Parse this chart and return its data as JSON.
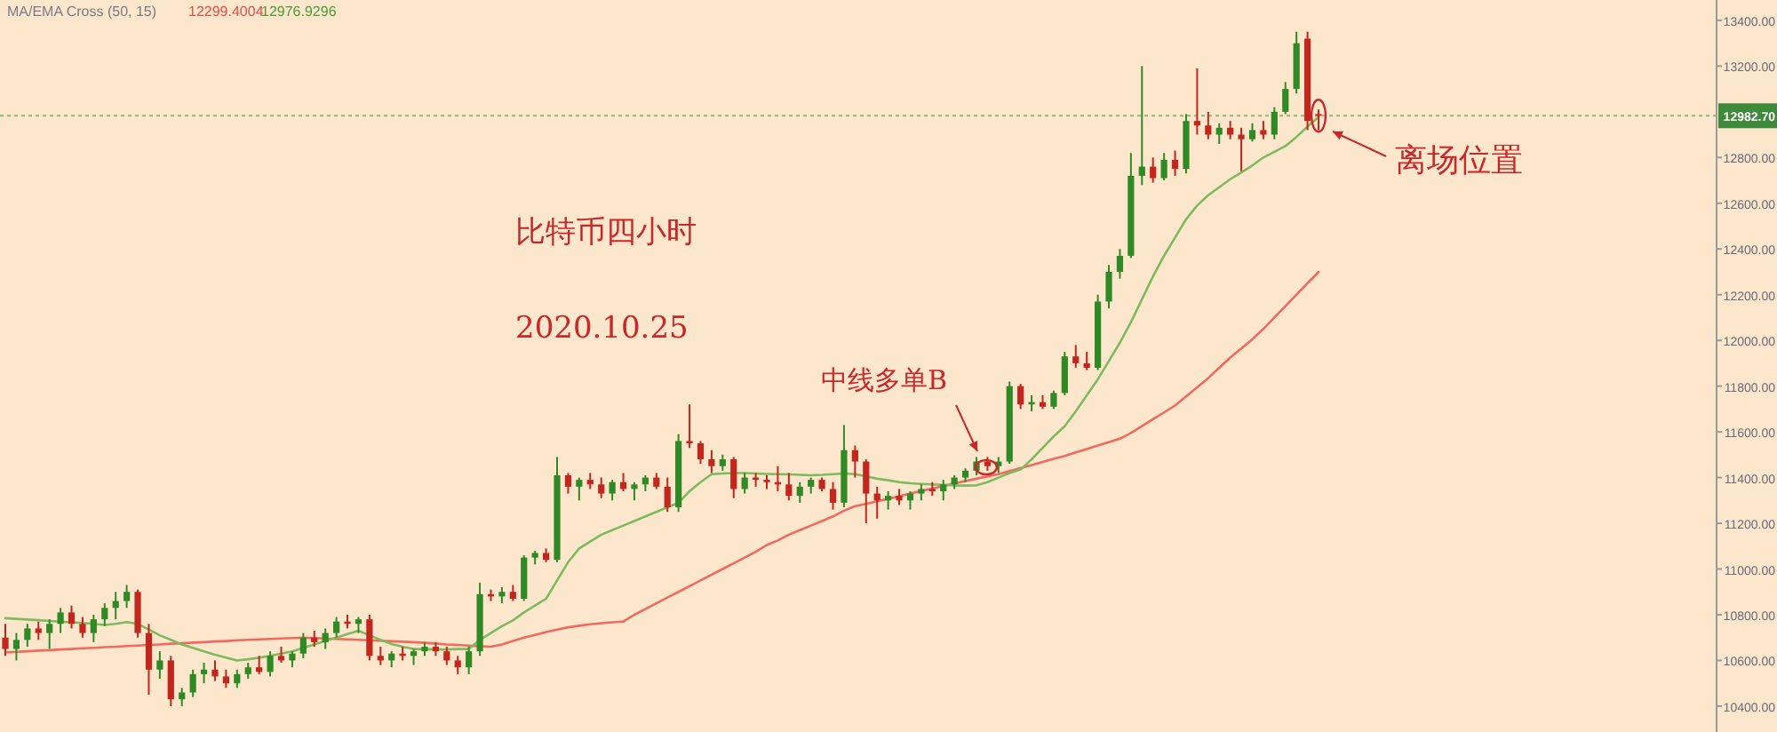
{
  "chart_data": {
    "type": "candlestick",
    "annotations": [
      "MA/EMA Cross (50, 15)",
      "12299.4004",
      "12976.9296",
      "比特币四小时",
      "2020.10.25",
      "中线多单B",
      "离场位置"
    ],
    "categories": [
      null,
      null,
      null,
      null,
      null,
      null,
      null,
      null,
      null,
      null,
      null,
      null,
      null,
      null,
      null,
      null,
      null,
      null,
      null,
      null,
      null,
      null,
      null,
      null,
      null,
      null,
      null,
      null,
      null,
      null,
      null,
      null,
      null,
      null,
      null,
      null,
      null,
      null,
      null,
      null,
      null,
      null,
      null,
      null,
      null,
      null,
      null,
      null,
      null,
      null,
      null,
      null,
      null,
      null,
      null,
      null,
      null,
      null,
      null,
      null,
      null,
      null,
      null,
      null,
      null,
      null,
      null,
      null,
      null,
      null,
      null,
      null,
      null,
      null,
      null,
      null,
      null,
      null,
      null,
      null,
      null,
      null,
      null,
      null,
      null,
      null,
      null,
      null,
      null,
      null,
      null,
      null,
      null,
      null,
      null,
      null,
      null,
      null,
      null,
      null,
      null,
      null,
      null,
      null,
      null,
      null,
      null,
      null,
      null,
      null,
      null,
      null,
      null,
      null,
      null,
      null,
      null,
      null,
      null,
      null
    ],
    "ohlc": [
      [
        10700,
        10760,
        10620,
        10650
      ],
      [
        10650,
        10720,
        10600,
        10690
      ],
      [
        10690,
        10760,
        10660,
        10740
      ],
      [
        10740,
        10770,
        10690,
        10720
      ],
      [
        10720,
        10780,
        10650,
        10760
      ],
      [
        10760,
        10830,
        10720,
        10810
      ],
      [
        10810,
        10840,
        10740,
        10760
      ],
      [
        10760,
        10790,
        10700,
        10720
      ],
      [
        10720,
        10800,
        10680,
        10780
      ],
      [
        10780,
        10850,
        10750,
        10830
      ],
      [
        10830,
        10900,
        10780,
        10860
      ],
      [
        10860,
        10930,
        10830,
        10900
      ],
      [
        10900,
        10910,
        10700,
        10720
      ],
      [
        10720,
        10760,
        10450,
        10560
      ],
      [
        10560,
        10640,
        10520,
        10600
      ],
      [
        10600,
        10620,
        10400,
        10430
      ],
      [
        10430,
        10480,
        10400,
        10460
      ],
      [
        10460,
        10560,
        10440,
        10540
      ],
      [
        10540,
        10590,
        10500,
        10560
      ],
      [
        10560,
        10600,
        10510,
        10530
      ],
      [
        10530,
        10560,
        10480,
        10500
      ],
      [
        10500,
        10560,
        10480,
        10540
      ],
      [
        10540,
        10590,
        10520,
        10570
      ],
      [
        10570,
        10620,
        10540,
        10550
      ],
      [
        10550,
        10640,
        10530,
        10620
      ],
      [
        10620,
        10660,
        10590,
        10600
      ],
      [
        10600,
        10640,
        10570,
        10630
      ],
      [
        10630,
        10720,
        10610,
        10700
      ],
      [
        10700,
        10730,
        10660,
        10680
      ],
      [
        10680,
        10740,
        10650,
        10720
      ],
      [
        10720,
        10790,
        10700,
        10770
      ],
      [
        10770,
        10800,
        10740,
        10760
      ],
      [
        10760,
        10790,
        10720,
        10780
      ],
      [
        10780,
        10800,
        10600,
        10620
      ],
      [
        10620,
        10660,
        10580,
        10600
      ],
      [
        10600,
        10640,
        10570,
        10630
      ],
      [
        10630,
        10660,
        10600,
        10620
      ],
      [
        10620,
        10650,
        10580,
        10640
      ],
      [
        10640,
        10680,
        10620,
        10660
      ],
      [
        10660,
        10680,
        10620,
        10640
      ],
      [
        10640,
        10660,
        10580,
        10600
      ],
      [
        10600,
        10620,
        10540,
        10570
      ],
      [
        10570,
        10660,
        10540,
        10640
      ],
      [
        10640,
        10940,
        10620,
        10890
      ],
      [
        10890,
        10910,
        10860,
        10880
      ],
      [
        10880,
        10920,
        10850,
        10900
      ],
      [
        10900,
        10930,
        10860,
        10870
      ],
      [
        10870,
        11060,
        10860,
        11050
      ],
      [
        11050,
        11080,
        11020,
        11070
      ],
      [
        11070,
        11090,
        11030,
        11040
      ],
      [
        11040,
        11490,
        11030,
        11410
      ],
      [
        11410,
        11420,
        11330,
        11360
      ],
      [
        11360,
        11400,
        11300,
        11390
      ],
      [
        11390,
        11420,
        11350,
        11370
      ],
      [
        11370,
        11400,
        11310,
        11330
      ],
      [
        11330,
        11390,
        11300,
        11380
      ],
      [
        11380,
        11420,
        11340,
        11350
      ],
      [
        11350,
        11380,
        11300,
        11370
      ],
      [
        11370,
        11410,
        11340,
        11400
      ],
      [
        11400,
        11420,
        11350,
        11360
      ],
      [
        11360,
        11400,
        11250,
        11270
      ],
      [
        11270,
        11590,
        11250,
        11560
      ],
      [
        11560,
        11720,
        11530,
        11550
      ],
      [
        11550,
        11560,
        11460,
        11480
      ],
      [
        11480,
        11520,
        11420,
        11450
      ],
      [
        11450,
        11500,
        11430,
        11480
      ],
      [
        11480,
        11490,
        11310,
        11350
      ],
      [
        11350,
        11420,
        11330,
        11400
      ],
      [
        11400,
        11420,
        11360,
        11390
      ],
      [
        11390,
        11410,
        11350,
        11380
      ],
      [
        11380,
        11450,
        11340,
        11370
      ],
      [
        11370,
        11420,
        11300,
        11320
      ],
      [
        11320,
        11380,
        11290,
        11360
      ],
      [
        11360,
        11400,
        11330,
        11390
      ],
      [
        11390,
        11400,
        11340,
        11350
      ],
      [
        11350,
        11380,
        11260,
        11290
      ],
      [
        11290,
        11630,
        11270,
        11520
      ],
      [
        11520,
        11540,
        11400,
        11470
      ],
      [
        11470,
        11480,
        11200,
        11330
      ],
      [
        11330,
        11360,
        11220,
        11300
      ],
      [
        11300,
        11340,
        11260,
        11320
      ],
      [
        11320,
        11350,
        11280,
        11300
      ],
      [
        11300,
        11340,
        11260,
        11330
      ],
      [
        11330,
        11370,
        11300,
        11350
      ],
      [
        11350,
        11380,
        11320,
        11340
      ],
      [
        11340,
        11390,
        11300,
        11370
      ],
      [
        11370,
        11410,
        11350,
        11400
      ],
      [
        11400,
        11440,
        11380,
        11430
      ],
      [
        11430,
        11490,
        11410,
        11470
      ],
      [
        11470,
        11490,
        11430,
        11450
      ],
      [
        11450,
        11490,
        11420,
        11470
      ],
      [
        11470,
        11820,
        11460,
        11800
      ],
      [
        11800,
        11810,
        11700,
        11720
      ],
      [
        11720,
        11760,
        11690,
        11730
      ],
      [
        11730,
        11760,
        11700,
        11710
      ],
      [
        11710,
        11780,
        11700,
        11770
      ],
      [
        11770,
        11950,
        11760,
        11930
      ],
      [
        11930,
        11980,
        11880,
        11900
      ],
      [
        11900,
        11950,
        11870,
        11880
      ],
      [
        11880,
        12200,
        11870,
        12170
      ],
      [
        12170,
        12330,
        12140,
        12300
      ],
      [
        12300,
        12400,
        12270,
        12370
      ],
      [
        12370,
        12820,
        12360,
        12720
      ],
      [
        12720,
        13200,
        12680,
        12760
      ],
      [
        12760,
        12800,
        12690,
        12710
      ],
      [
        12710,
        12820,
        12700,
        12790
      ],
      [
        12790,
        12830,
        12720,
        12750
      ],
      [
        12750,
        12990,
        12730,
        12960
      ],
      [
        12960,
        13190,
        12900,
        12940
      ],
      [
        12940,
        13000,
        12880,
        12900
      ],
      [
        12900,
        12950,
        12860,
        12930
      ],
      [
        12930,
        12960,
        12880,
        12900
      ],
      [
        12900,
        12930,
        12740,
        12880
      ],
      [
        12880,
        12950,
        12870,
        12920
      ],
      [
        12920,
        12960,
        12880,
        12900
      ],
      [
        12900,
        13020,
        12880,
        13000
      ],
      [
        13000,
        13130,
        12990,
        13100
      ],
      [
        13100,
        13350,
        13080,
        13300
      ],
      [
        13320,
        13350,
        12920,
        12960
      ],
      [
        12990,
        13010,
        12920,
        12982.7
      ]
    ],
    "series": [
      {
        "type": "line",
        "color": "#f26a5e",
        "values": [
          10635,
          10638,
          10640,
          10643,
          10645,
          10648,
          10650,
          10653,
          10655,
          10658,
          10660,
          10663,
          10665,
          10668,
          10670,
          10673,
          10675,
          10678,
          10680,
          10683,
          10685,
          10688,
          10690,
          10692,
          10694,
          10696,
          10698,
          10700,
          10698,
          10696,
          10694,
          10692,
          10690,
          10688,
          10686,
          10684,
          10682,
          10680,
          10677,
          10674,
          10670,
          10668,
          10665,
          10662,
          10660,
          10670,
          10685,
          10700,
          10712,
          10724,
          10735,
          10745,
          10752,
          10758,
          10763,
          10767,
          10770,
          10800,
          10825,
          10850,
          10875,
          10900,
          10925,
          10950,
          10975,
          11000,
          11025,
          11050,
          11075,
          11105,
          11125,
          11150,
          11170,
          11190,
          11210,
          11230,
          11255,
          11275,
          11285,
          11296,
          11307,
          11318,
          11330,
          11341,
          11352,
          11363,
          11374,
          11385,
          11395,
          11405,
          11415,
          11428,
          11441,
          11455,
          11468,
          11482,
          11495,
          11510,
          11525,
          11540,
          11555,
          11570,
          11595,
          11625,
          11655,
          11685,
          11715,
          11755,
          11795,
          11835,
          11880,
          11925,
          11965,
          12005,
          12050,
          12100,
          12150,
          12200,
          12250,
          12299
        ]
      },
      {
        "type": "line",
        "color": "#7dbb5e",
        "values": [
          10785,
          10782,
          10779,
          10776,
          10773,
          10770,
          10767,
          10764,
          10760,
          10755,
          10760,
          10768,
          10760,
          10735,
          10710,
          10690,
          10670,
          10655,
          10640,
          10625,
          10612,
          10600,
          10605,
          10612,
          10620,
          10630,
          10640,
          10655,
          10670,
          10685,
          10700,
          10715,
          10730,
          10710,
          10690,
          10672,
          10660,
          10650,
          10650,
          10648,
          10648,
          10650,
          10650,
          10690,
          10720,
          10750,
          10775,
          10810,
          10840,
          10870,
          10950,
          11030,
          11090,
          11120,
          11150,
          11170,
          11190,
          11210,
          11230,
          11250,
          11270,
          11290,
          11340,
          11380,
          11415,
          11418,
          11420,
          11420,
          11418,
          11416,
          11415,
          11414,
          11412,
          11410,
          11412,
          11415,
          11418,
          11415,
          11405,
          11395,
          11388,
          11380,
          11375,
          11372,
          11370,
          11368,
          11366,
          11365,
          11366,
          11380,
          11400,
          11420,
          11435,
          11480,
          11530,
          11580,
          11625,
          11690,
          11760,
          11830,
          11910,
          11990,
          12080,
          12180,
          12280,
          12370,
          12450,
          12530,
          12590,
          12635,
          12670,
          12705,
          12735,
          12765,
          12800,
          12825,
          12850,
          12890,
          12935,
          12977
        ]
      }
    ],
    "ylim": [
      10287,
      13489
    ],
    "yticks": [
      {
        "value": 10400,
        "label": "10400.00"
      },
      {
        "value": 10600,
        "label": "10600.00"
      },
      {
        "value": 10800,
        "label": "10800.00"
      },
      {
        "value": 11000,
        "label": "11000.00"
      },
      {
        "value": 11200,
        "label": "11200.00"
      },
      {
        "value": 11400,
        "label": "11400.00"
      },
      {
        "value": 11600,
        "label": "11600.00"
      },
      {
        "value": 11800,
        "label": "11800.00"
      },
      {
        "value": 12000,
        "label": "12000.00"
      },
      {
        "value": 12200,
        "label": "12200.00"
      },
      {
        "value": 12400,
        "label": "12400.00"
      },
      {
        "value": 12600,
        "label": "12600.00"
      },
      {
        "value": 12800,
        "label": "12800.00"
      },
      {
        "value": 13200,
        "label": "13200.00"
      },
      {
        "value": 13400,
        "label": "13400.00"
      }
    ],
    "ref_lines": [
      {
        "axis": "y",
        "value": 12982.7,
        "label": "12982.70",
        "color": "#8cba70",
        "line_style": "dotted"
      }
    ],
    "tick_labels": "y",
    "grid": false
  }
}
